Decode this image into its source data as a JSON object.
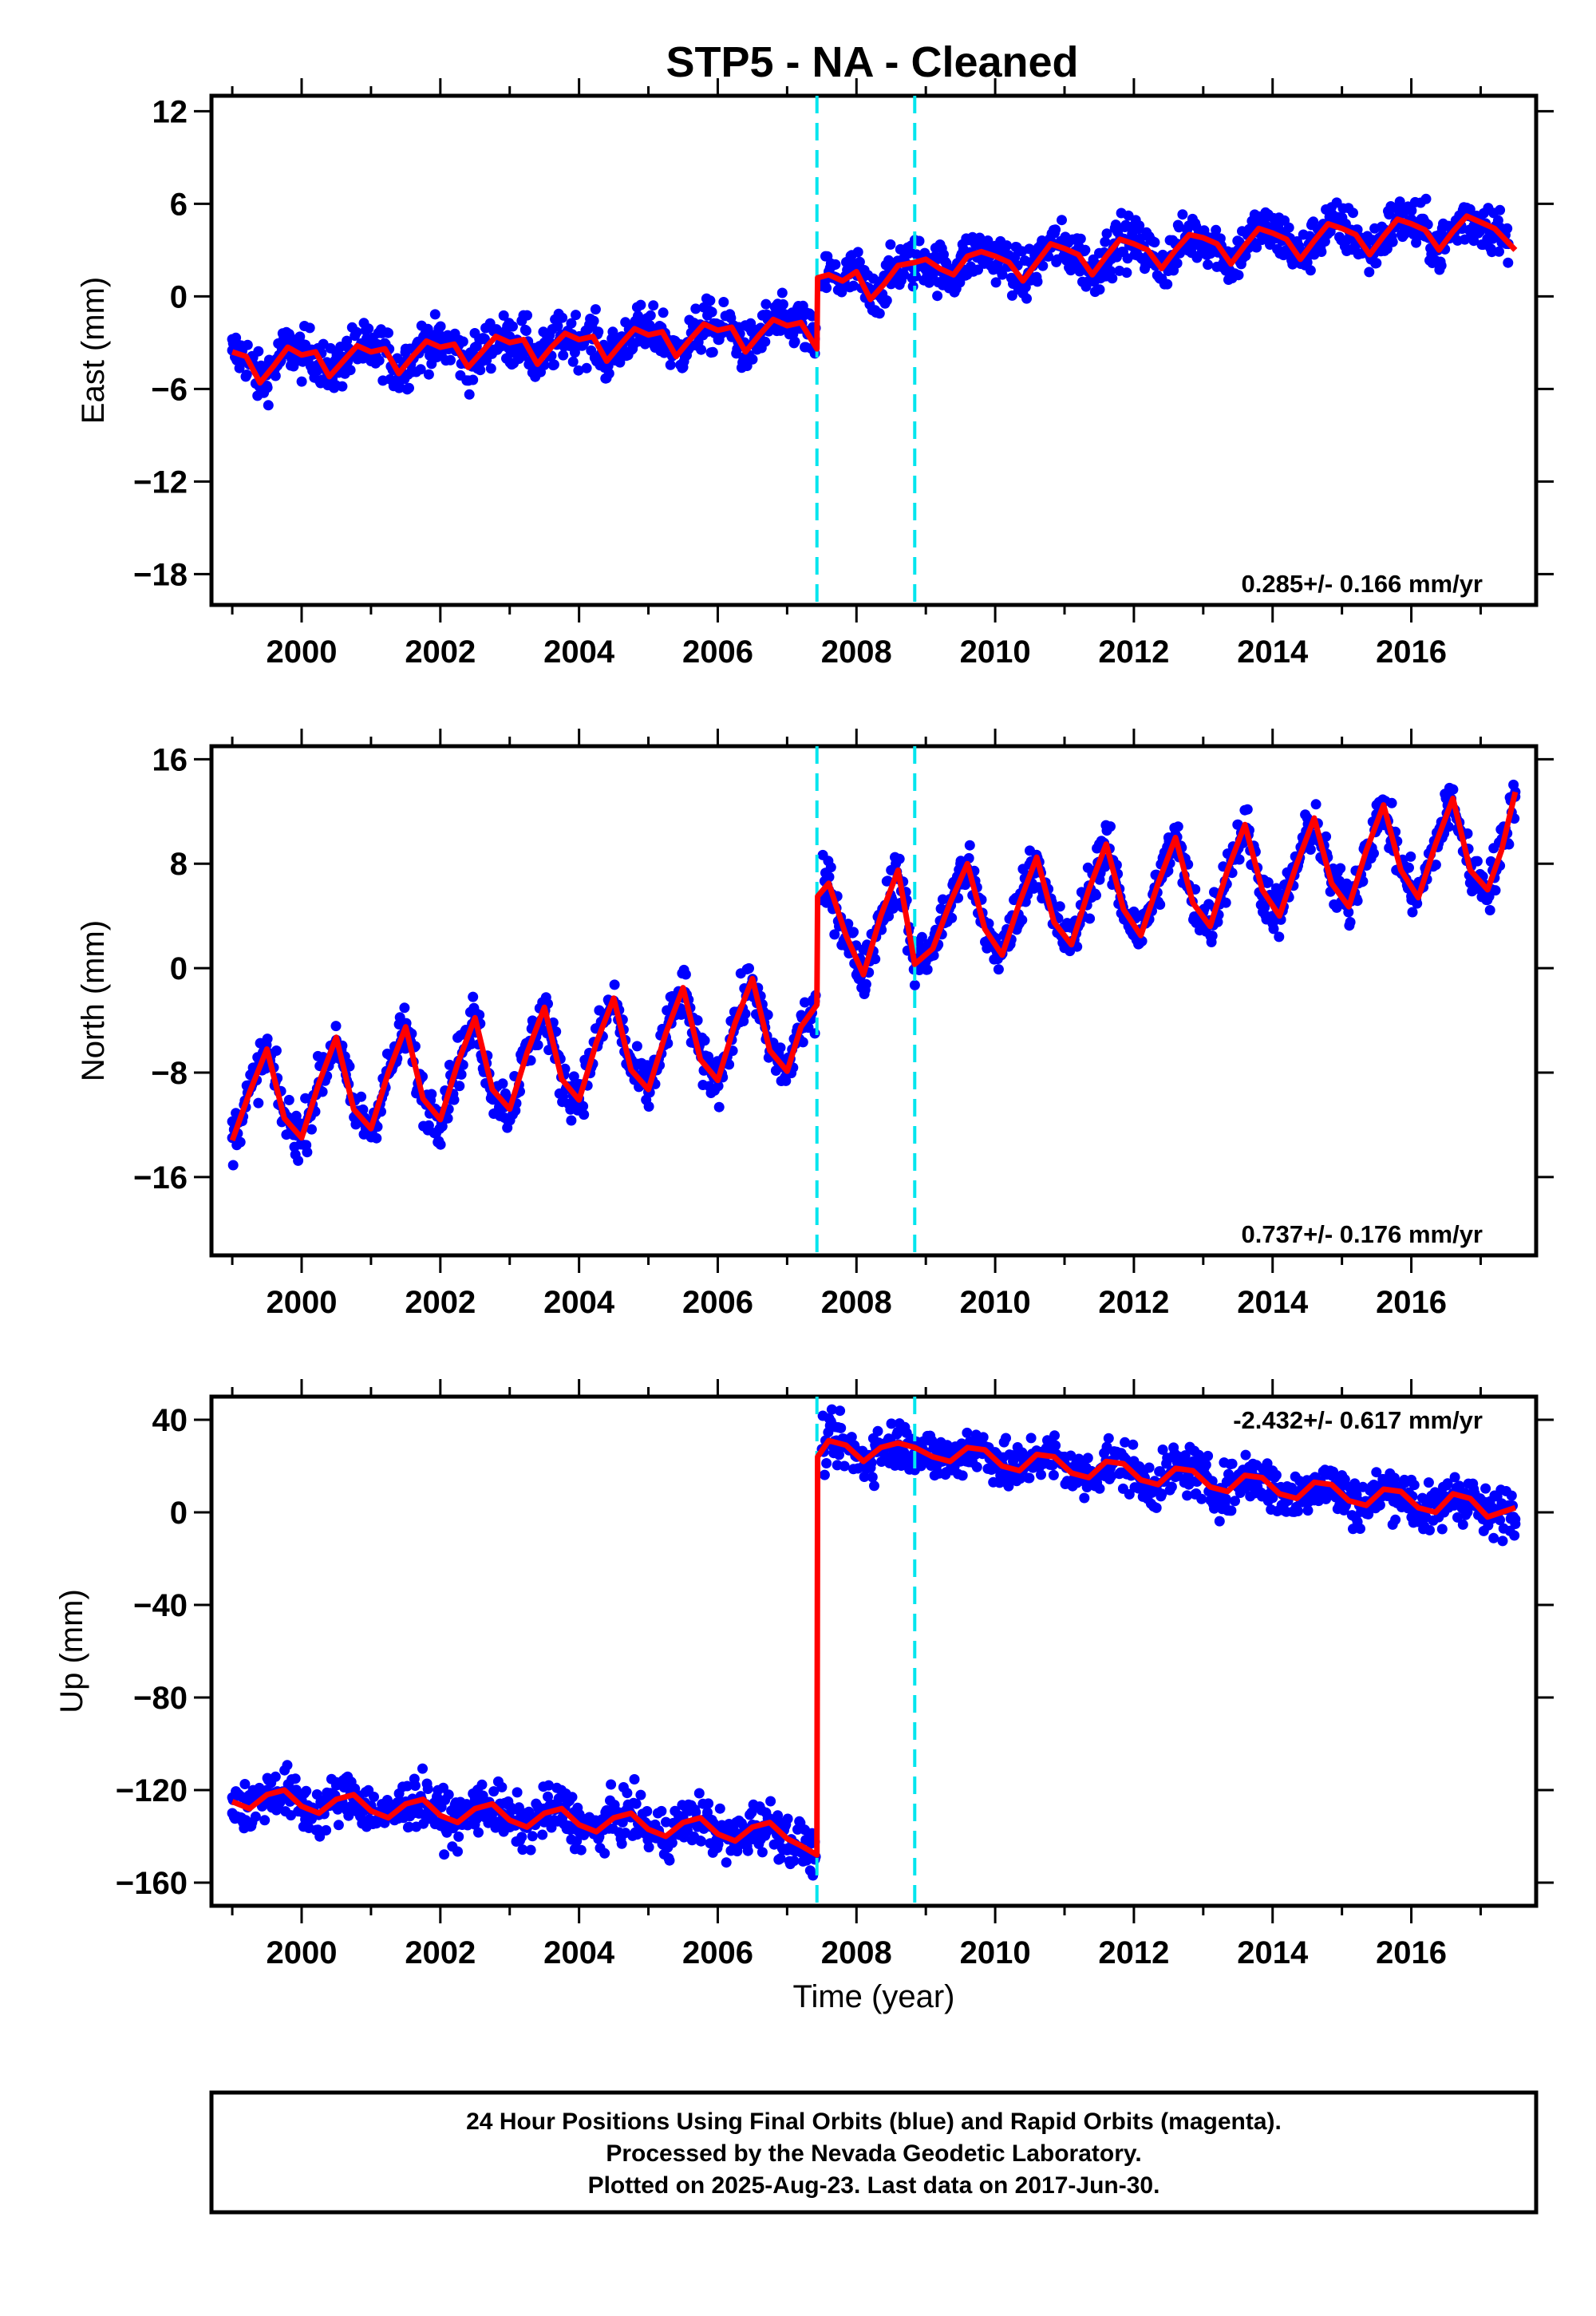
{
  "title": "STP5  - NA - Cleaned",
  "xlabel": "Time (year)",
  "footer": [
    "24 Hour Positions Using Final Orbits (blue) and Rapid Orbits (magenta).",
    "Processed by the Nevada Geodetic Laboratory.",
    "Plotted on 2025-Aug-23. Last data on 2017-Jun-30."
  ],
  "colors": {
    "points": "#0000ff",
    "model": "#ff0000",
    "breaks": "#00e5ee",
    "frame": "#000000"
  },
  "chart_data": [
    {
      "type": "scatter",
      "component": "east",
      "ylabel": "East (mm)",
      "rate_label": "0.285+/- 0.166 mm/yr",
      "xlim": [
        1998.7,
        2017.8
      ],
      "ylim": [
        -20,
        13
      ],
      "yticks": [
        12,
        6,
        0,
        -6,
        -12,
        -18
      ],
      "xticks": [
        2000,
        2002,
        2004,
        2006,
        2008,
        2010,
        2012,
        2014,
        2016
      ],
      "breaks": [
        2007.43,
        2008.84
      ],
      "series": [
        {
          "kind": "points",
          "x": [
            1999.0,
            1999.5,
            2000.0,
            2000.5,
            2001.0,
            2001.5,
            2002.0,
            2002.5,
            2003.0,
            2003.5,
            2004.0,
            2004.5,
            2005.0,
            2005.5,
            2006.0,
            2006.5,
            2007.0,
            2007.4,
            2007.6,
            2008.0,
            2008.5,
            2009.0,
            2009.5,
            2010.0,
            2010.5,
            2011.0,
            2011.5,
            2012.0,
            2012.5,
            2013.0,
            2013.5,
            2014.0,
            2014.5,
            2015.0,
            2015.5,
            2016.0,
            2016.5,
            2016.9,
            2017.4
          ],
          "y": [
            -3.5,
            -5.8,
            -3.8,
            -3.6,
            -4.2,
            -3.4,
            -3.0,
            -3.3,
            -2.6,
            -3.0,
            -3.2,
            -2.6,
            -2.4,
            -3.4,
            -2.1,
            -3.1,
            -1.8,
            -3.7,
            1.6,
            1.4,
            0.8,
            2.0,
            1.8,
            3.0,
            1.2,
            3.0,
            2.8,
            3.5,
            2.2,
            3.8,
            3.0,
            4.4,
            2.2,
            4.6,
            3.2,
            5.0,
            3.8,
            3.6,
            3.4
          ]
        },
        {
          "kind": "model",
          "x": [
            1999.0,
            1999.2,
            1999.4,
            1999.6,
            1999.8,
            2000.0,
            2000.2,
            2000.4,
            2000.6,
            2000.8,
            2001.0,
            2001.2,
            2001.4,
            2001.6,
            2001.8,
            2002.0,
            2002.2,
            2002.4,
            2002.6,
            2002.8,
            2003.0,
            2003.2,
            2003.4,
            2003.6,
            2003.8,
            2004.0,
            2004.2,
            2004.4,
            2004.6,
            2004.8,
            2005.0,
            2005.2,
            2005.4,
            2005.6,
            2005.8,
            2006.0,
            2006.2,
            2006.4,
            2006.6,
            2006.8,
            2007.0,
            2007.2,
            2007.43,
            2007.44,
            2007.6,
            2007.8,
            2008.0,
            2008.2,
            2008.4,
            2008.6,
            2008.84,
            2009.0,
            2009.2,
            2009.4,
            2009.6,
            2009.8,
            2010.0,
            2010.2,
            2010.4,
            2010.6,
            2010.8,
            2011.0,
            2011.2,
            2011.4,
            2011.6,
            2011.8,
            2012.0,
            2012.2,
            2012.4,
            2012.6,
            2012.8,
            2013.0,
            2013.2,
            2013.4,
            2013.6,
            2013.8,
            2014.0,
            2014.2,
            2014.4,
            2014.6,
            2014.8,
            2015.0,
            2015.2,
            2015.4,
            2015.6,
            2015.8,
            2016.0,
            2016.2,
            2016.4,
            2016.6,
            2016.8,
            2017.0,
            2017.2,
            2017.5
          ],
          "y": [
            -3.6,
            -3.9,
            -5.6,
            -4.5,
            -3.3,
            -3.8,
            -3.6,
            -5.2,
            -4.2,
            -3.2,
            -3.6,
            -3.4,
            -5.0,
            -3.9,
            -2.9,
            -3.3,
            -3.1,
            -4.6,
            -3.6,
            -2.6,
            -3.0,
            -2.8,
            -4.4,
            -3.3,
            -2.4,
            -2.8,
            -2.6,
            -4.2,
            -3.1,
            -2.1,
            -2.5,
            -2.3,
            -3.9,
            -2.8,
            -1.8,
            -2.2,
            -2.0,
            -3.6,
            -2.5,
            -1.5,
            -1.9,
            -1.7,
            -3.4,
            1.2,
            1.4,
            1.0,
            1.6,
            -0.2,
            0.8,
            2.0,
            2.2,
            2.4,
            1.8,
            1.4,
            2.6,
            2.9,
            2.6,
            2.2,
            1.0,
            2.2,
            3.4,
            3.1,
            2.7,
            1.4,
            2.6,
            3.7,
            3.4,
            3.0,
            1.8,
            3.0,
            4.0,
            3.8,
            3.4,
            2.1,
            3.3,
            4.4,
            4.1,
            3.7,
            2.4,
            3.6,
            4.7,
            4.4,
            4.0,
            2.7,
            3.9,
            5.0,
            4.7,
            4.3,
            3.0,
            4.2,
            5.2,
            4.8,
            4.4,
            3.0
          ]
        }
      ]
    },
    {
      "type": "scatter",
      "component": "north",
      "ylabel": "North (mm)",
      "rate_label": "0.737+/- 0.176 mm/yr",
      "xlim": [
        1998.7,
        2017.8
      ],
      "ylim": [
        -22,
        17
      ],
      "yticks": [
        16,
        8,
        0,
        -8,
        -16
      ],
      "xticks": [
        2000,
        2002,
        2004,
        2006,
        2008,
        2010,
        2012,
        2014,
        2016
      ],
      "breaks": [
        2007.43,
        2008.84
      ],
      "series": [
        {
          "kind": "points",
          "x": [
            1999.0,
            1999.5,
            2000.0,
            2000.5,
            2001.0,
            2001.5,
            2002.0,
            2002.5,
            2003.0,
            2003.5,
            2004.0,
            2004.5,
            2005.0,
            2005.5,
            2006.0,
            2006.5,
            2007.0,
            2007.4,
            2007.6,
            2008.0,
            2008.5,
            2009.0,
            2009.5,
            2010.0,
            2010.5,
            2011.0,
            2011.5,
            2012.0,
            2012.5,
            2013.0,
            2013.5,
            2014.0,
            2014.5,
            2015.0,
            2015.5,
            2016.0,
            2016.5,
            2016.9,
            2017.5
          ],
          "y": [
            -13.0,
            -6.5,
            -13.5,
            -5.5,
            -12.0,
            -4.5,
            -11.0,
            -4.0,
            -10.5,
            -3.5,
            -10.0,
            -2.5,
            -9.5,
            -2.0,
            -8.5,
            -1.5,
            -8.0,
            -5.0,
            6.0,
            -0.5,
            7.5,
            0.5,
            8.0,
            1.5,
            9.0,
            2.0,
            9.5,
            2.5,
            10.0,
            3.5,
            11.0,
            4.0,
            11.5,
            5.0,
            12.5,
            5.5,
            13.0,
            6.0,
            13.5
          ]
        },
        {
          "kind": "model",
          "x": [
            1999.0,
            1999.25,
            1999.5,
            1999.75,
            2000.0,
            2000.25,
            2000.5,
            2000.75,
            2001.0,
            2001.25,
            2001.5,
            2001.75,
            2002.0,
            2002.25,
            2002.5,
            2002.75,
            2003.0,
            2003.25,
            2003.5,
            2003.75,
            2004.0,
            2004.25,
            2004.5,
            2004.75,
            2005.0,
            2005.25,
            2005.5,
            2005.75,
            2006.0,
            2006.25,
            2006.5,
            2006.75,
            2007.0,
            2007.2,
            2007.43,
            2007.44,
            2007.6,
            2007.85,
            2008.1,
            2008.35,
            2008.6,
            2008.84,
            2009.1,
            2009.35,
            2009.6,
            2009.85,
            2010.1,
            2010.35,
            2010.6,
            2010.85,
            2011.1,
            2011.35,
            2011.6,
            2011.85,
            2012.1,
            2012.35,
            2012.6,
            2012.85,
            2013.1,
            2013.35,
            2013.6,
            2013.85,
            2014.1,
            2014.35,
            2014.6,
            2014.85,
            2015.1,
            2015.35,
            2015.6,
            2015.85,
            2016.1,
            2016.35,
            2016.6,
            2016.85,
            2017.1,
            2017.3,
            2017.5
          ],
          "y": [
            -13.2,
            -9.5,
            -6.2,
            -11.5,
            -13.0,
            -8.8,
            -5.3,
            -10.8,
            -12.3,
            -8.0,
            -4.5,
            -10.0,
            -11.6,
            -7.3,
            -3.8,
            -9.3,
            -10.8,
            -6.5,
            -3.0,
            -8.5,
            -10.1,
            -5.7,
            -2.3,
            -7.8,
            -9.3,
            -5.0,
            -1.5,
            -7.0,
            -8.6,
            -4.2,
            -0.8,
            -6.3,
            -7.9,
            -4.5,
            -2.8,
            5.5,
            6.5,
            2.5,
            -0.5,
            4.0,
            7.5,
            0.3,
            1.5,
            5.0,
            8.0,
            3.0,
            1.0,
            5.0,
            8.5,
            3.5,
            1.8,
            6.0,
            9.5,
            4.5,
            2.5,
            6.5,
            10.0,
            5.0,
            3.2,
            7.5,
            11.0,
            6.0,
            4.0,
            8.0,
            11.5,
            6.5,
            4.7,
            9.0,
            12.5,
            7.5,
            5.4,
            9.5,
            13.0,
            7.5,
            6.0,
            9.0,
            13.5
          ]
        }
      ]
    },
    {
      "type": "scatter",
      "component": "up",
      "ylabel": "Up (mm)",
      "rate_label": "-2.432+/- 0.617 mm/yr",
      "xlim": [
        1998.7,
        2017.8
      ],
      "ylim": [
        -170,
        50
      ],
      "yticks": [
        40,
        0,
        -40,
        -80,
        -120,
        -160
      ],
      "xticks": [
        2000,
        2002,
        2004,
        2006,
        2008,
        2010,
        2012,
        2014,
        2016
      ],
      "breaks": [
        2007.43,
        2008.84
      ],
      "series": [
        {
          "kind": "points",
          "x": [
            1999.0,
            1999.5,
            2000.0,
            2000.5,
            2001.0,
            2001.5,
            2002.0,
            2002.5,
            2003.0,
            2003.5,
            2004.0,
            2004.5,
            2005.0,
            2005.5,
            2006.0,
            2006.5,
            2007.0,
            2007.4,
            2007.6,
            2008.0,
            2008.5,
            2009.0,
            2009.5,
            2010.0,
            2010.5,
            2011.0,
            2011.5,
            2012.0,
            2012.5,
            2013.0,
            2013.5,
            2014.0,
            2014.5,
            2015.0,
            2015.5,
            2016.0,
            2016.5,
            2016.9,
            2017.5
          ],
          "y": [
            -130,
            -120,
            -128,
            -118,
            -133,
            -125,
            -134,
            -124,
            -136,
            -128,
            -138,
            -130,
            -140,
            -132,
            -143,
            -135,
            -146,
            -150,
            30,
            24,
            28,
            26,
            22,
            26,
            20,
            24,
            18,
            22,
            16,
            20,
            12,
            18,
            10,
            16,
            8,
            14,
            6,
            10,
            -5
          ]
        },
        {
          "kind": "model",
          "x": [
            1999.0,
            1999.25,
            1999.5,
            1999.75,
            2000.0,
            2000.25,
            2000.5,
            2000.75,
            2001.0,
            2001.25,
            2001.5,
            2001.75,
            2002.0,
            2002.25,
            2002.5,
            2002.75,
            2003.0,
            2003.25,
            2003.5,
            2003.75,
            2004.0,
            2004.25,
            2004.5,
            2004.75,
            2005.0,
            2005.25,
            2005.5,
            2005.75,
            2006.0,
            2006.25,
            2006.5,
            2006.75,
            2007.0,
            2007.2,
            2007.43,
            2007.44,
            2007.6,
            2007.85,
            2008.1,
            2008.35,
            2008.6,
            2008.84,
            2009.1,
            2009.35,
            2009.6,
            2009.85,
            2010.1,
            2010.35,
            2010.6,
            2010.85,
            2011.1,
            2011.35,
            2011.6,
            2011.85,
            2012.1,
            2012.35,
            2012.6,
            2012.85,
            2013.1,
            2013.35,
            2013.6,
            2013.85,
            2014.1,
            2014.35,
            2014.6,
            2014.85,
            2015.1,
            2015.35,
            2015.6,
            2015.85,
            2016.1,
            2016.35,
            2016.6,
            2016.85,
            2017.1,
            2017.3,
            2017.5
          ],
          "y": [
            -125,
            -128,
            -122,
            -120,
            -127,
            -130,
            -124,
            -122,
            -129,
            -132,
            -126,
            -124,
            -131,
            -134,
            -128,
            -126,
            -133,
            -136,
            -130,
            -128,
            -135,
            -138,
            -132,
            -130,
            -137,
            -140,
            -134,
            -132,
            -139,
            -142,
            -136,
            -134,
            -141,
            -144,
            -148,
            24,
            31,
            29,
            22,
            28,
            30,
            28,
            24,
            22,
            28,
            27,
            20,
            18,
            25,
            24,
            17,
            15,
            22,
            21,
            14,
            12,
            19,
            18,
            11,
            9,
            16,
            15,
            8,
            6,
            13,
            12,
            5,
            3,
            10,
            9,
            2,
            0,
            8,
            6,
            -2,
            0,
            2
          ]
        }
      ]
    }
  ]
}
